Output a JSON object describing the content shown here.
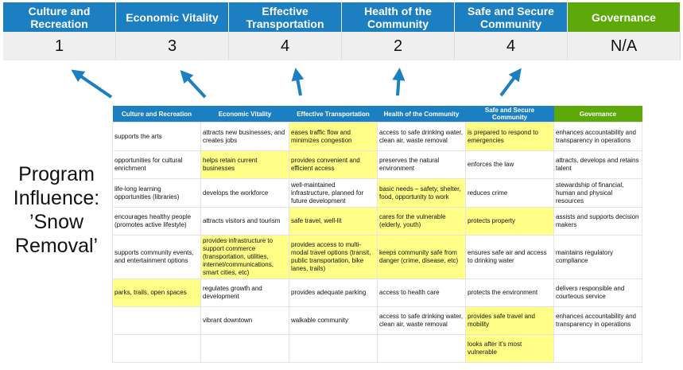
{
  "categories": [
    "Culture and Recreation",
    "Economic Vitality",
    "Effective Transportation",
    "Health of the Community",
    "Safe and Secure Community",
    "Governance"
  ],
  "scores": [
    "1",
    "3",
    "4",
    "2",
    "4",
    "N/A"
  ],
  "colors": {
    "header_blue": "#1b7fc1",
    "governance_green": "#5ea90a",
    "highlight": "#ffff88",
    "arrow": "#1b7fc1"
  },
  "label": "Program Influence: ’Snow Removal’",
  "rows": [
    {
      "cells": [
        "supports the arts",
        "attracts new businesses, and creates jobs",
        "eases traffic flow and minimizes congestion",
        "access to safe drinking water, clean air, waste removal",
        "is prepared to respond to emergencies",
        "enhances accountability and transparency in operations"
      ],
      "highlight": [
        false,
        false,
        true,
        false,
        true,
        false
      ]
    },
    {
      "cells": [
        "opportunities for cultural enrichment",
        "helps retain current businesses",
        "provides convenient and efficient access",
        "preserves the natural environment",
        "enforces the law",
        "attracts, develops and retains talent"
      ],
      "highlight": [
        false,
        true,
        true,
        false,
        false,
        false
      ]
    },
    {
      "cells": [
        "life-long learning opportunities (libraries)",
        "develops the workforce",
        "well-maintained infrastructure, planned for future development",
        "basic needs – safety, shelter, food, opportunity to work",
        "reduces crime",
        "stewardship of financial, human and physical resources"
      ],
      "highlight": [
        false,
        false,
        false,
        true,
        false,
        false
      ]
    },
    {
      "cells": [
        "encourages healthy people (promotes active lifestyle)",
        "attracts visitors and tourism",
        "safe travel, well-lit",
        "cares for the vulnerable (elderly, youth)",
        "protects property",
        "assists and supports decision makers"
      ],
      "highlight": [
        false,
        false,
        true,
        true,
        true,
        false
      ]
    },
    {
      "cells": [
        "supports community events, and entertainment options",
        "provides infrastructure to support commerce (transportation, utilities, internet/communications, smart cities, etc)",
        "provides access to multi-modal travel options (transit, public transportation, bike lanes, trails)",
        "keeps community safe from danger (crime, disease, etc)",
        "ensures safe air and access to drinking water",
        "maintains regulatory compliance"
      ],
      "highlight": [
        false,
        true,
        true,
        true,
        false,
        false
      ]
    },
    {
      "cells": [
        "parks, trails, open spaces",
        "regulates growth and development",
        "provides adequate parking",
        "access to health care",
        "protects the environment",
        "delivers responsible and courteous service"
      ],
      "highlight": [
        true,
        false,
        false,
        false,
        false,
        false
      ]
    },
    {
      "cells": [
        "",
        "vibrant downtown",
        "walkable community",
        "access to safe drinking water, clean air, waste removal",
        "provides safe travel and mobility",
        "enhances accountability and transparency in operations"
      ],
      "highlight": [
        false,
        false,
        false,
        false,
        true,
        false
      ]
    },
    {
      "cells": [
        "",
        "",
        "",
        "",
        "looks after it's most vulnerable",
        ""
      ],
      "highlight": [
        false,
        false,
        false,
        false,
        true,
        false
      ]
    }
  ]
}
